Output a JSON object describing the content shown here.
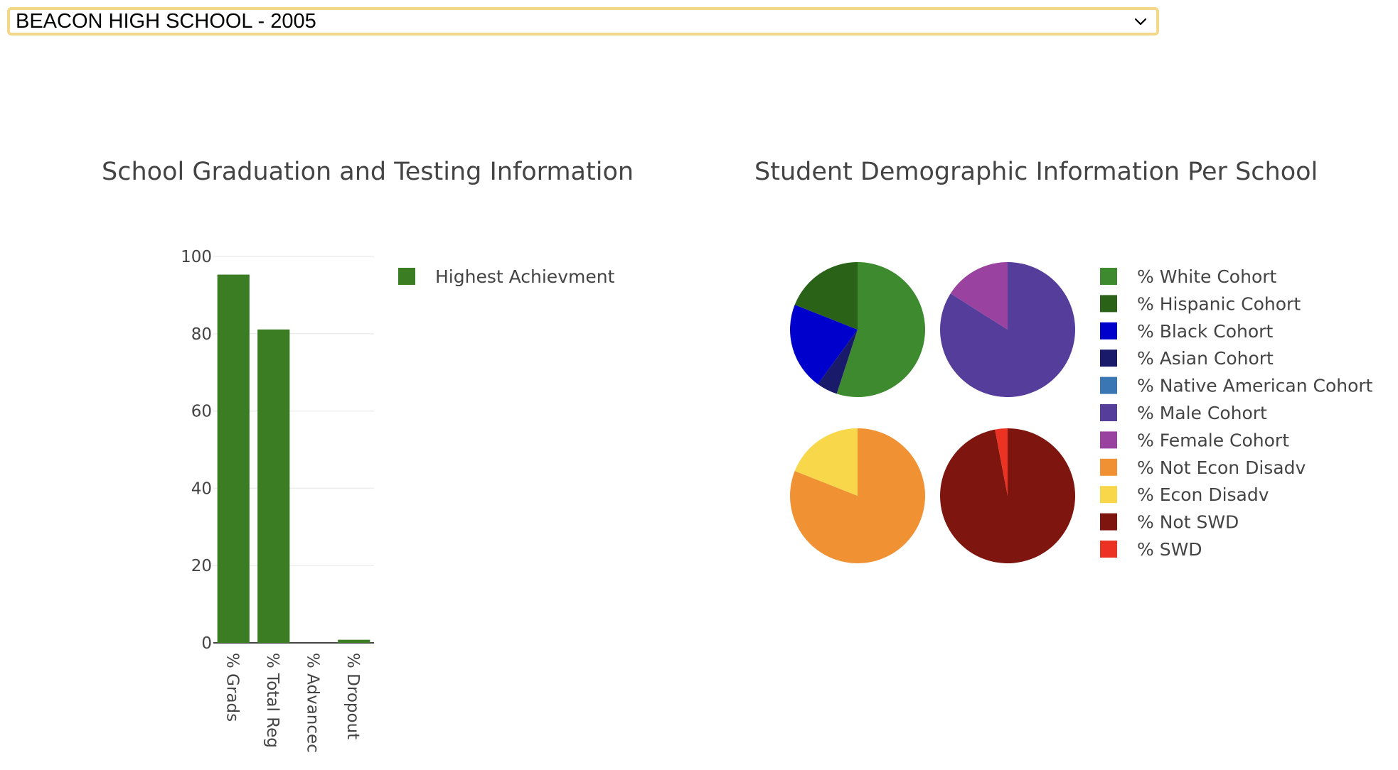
{
  "school_select": {
    "value": "BEACON HIGH SCHOOL - 2005",
    "options": [
      "BEACON HIGH SCHOOL - 2005"
    ]
  },
  "chart_data": [
    {
      "type": "bar",
      "title": "School Graduation and Testing Information",
      "categories": [
        "% Grads",
        "% Total Reg",
        "% Advanced",
        "% Dropout"
      ],
      "category_display": [
        "% Grads",
        "% Total Reg",
        "% Advancec",
        "% Dropout"
      ],
      "series": [
        {
          "name": "Highest Achievment",
          "values": [
            95.3,
            81.1,
            0,
            0.8
          ],
          "color": "#3a7d22"
        }
      ],
      "ylim": [
        0,
        100
      ],
      "yticks": [
        0,
        20,
        40,
        60,
        80,
        100
      ],
      "xlabel": "",
      "ylabel": "",
      "grid": true,
      "legend_position": "right"
    },
    {
      "type": "pie",
      "title": "Student Demographic Information Per School",
      "legend_position": "right",
      "legend": [
        {
          "label": "% White Cohort",
          "color": "#3e8a2f"
        },
        {
          "label": "% Hispanic Cohort",
          "color": "#2a6218"
        },
        {
          "label": "% Black Cohort",
          "color": "#0000cc"
        },
        {
          "label": "% Asian Cohort",
          "color": "#1a1a6b"
        },
        {
          "label": "% Native American Cohort",
          "color": "#3a76b4"
        },
        {
          "label": "% Male Cohort",
          "color": "#553e9b"
        },
        {
          "label": "% Female Cohort",
          "color": "#9a42a0"
        },
        {
          "label": "% Not Econ Disadv",
          "color": "#f09234"
        },
        {
          "label": "% Econ Disadv",
          "color": "#f8d84a"
        },
        {
          "label": "% Not SWD",
          "color": "#7e150e"
        },
        {
          "label": "% SWD",
          "color": "#ec3222"
        }
      ],
      "pies": [
        {
          "name": "ethnicity",
          "slices": [
            {
              "label": "% White Cohort",
              "value": 55
            },
            {
              "label": "% Asian Cohort",
              "value": 5
            },
            {
              "label": "% Black Cohort",
              "value": 21
            },
            {
              "label": "% Hispanic Cohort",
              "value": 19
            },
            {
              "label": "% Native American Cohort",
              "value": 0
            }
          ]
        },
        {
          "name": "gender",
          "slices": [
            {
              "label": "% Male Cohort",
              "value": 84
            },
            {
              "label": "% Female Cohort",
              "value": 16
            }
          ]
        },
        {
          "name": "economic",
          "slices": [
            {
              "label": "% Not Econ Disadv",
              "value": 81
            },
            {
              "label": "% Econ Disadv",
              "value": 19
            }
          ]
        },
        {
          "name": "disability",
          "slices": [
            {
              "label": "% Not SWD",
              "value": 97
            },
            {
              "label": "% SWD",
              "value": 3
            }
          ]
        }
      ]
    }
  ]
}
